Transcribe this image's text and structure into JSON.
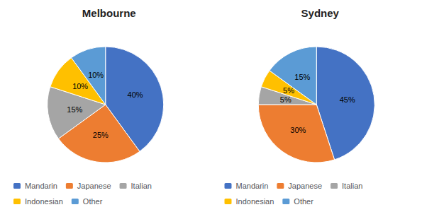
{
  "chart_data": [
    {
      "type": "pie",
      "title": "Melbourne",
      "categories": [
        "Mandarin",
        "Japanese",
        "Italian",
        "Indonesian",
        "Other"
      ],
      "values": [
        40,
        25,
        15,
        10,
        10
      ],
      "value_labels": [
        "40%",
        "25%",
        "15%",
        "10%",
        "10%"
      ],
      "colors": [
        "#4472C4",
        "#ED7D31",
        "#A5A5A5",
        "#FFC000",
        "#5B9BD5"
      ],
      "data_labels": true,
      "legend": "bottom"
    },
    {
      "type": "pie",
      "title": "Sydney",
      "categories": [
        "Mandarin",
        "Japanese",
        "Italian",
        "Indonesian",
        "Other"
      ],
      "values": [
        45,
        30,
        5,
        5,
        15
      ],
      "value_labels": [
        "45%",
        "30%",
        "5%",
        "5%",
        "15%"
      ],
      "colors": [
        "#4472C4",
        "#ED7D31",
        "#A5A5A5",
        "#FFC000",
        "#5B9BD5"
      ],
      "data_labels": true,
      "legend": "bottom"
    }
  ]
}
